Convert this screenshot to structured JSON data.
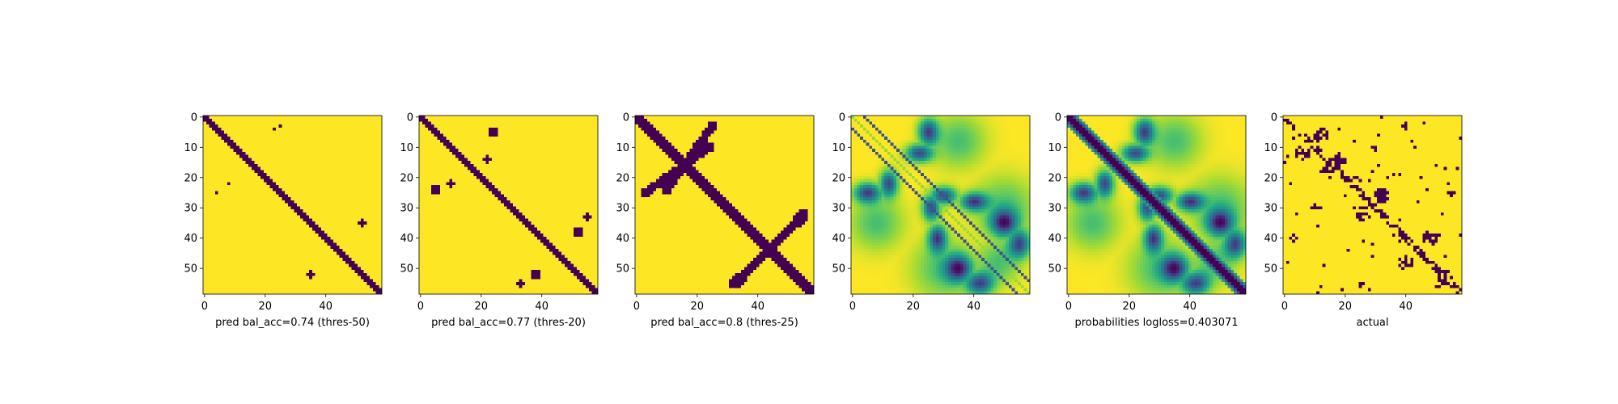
{
  "figure": {
    "background": "#ffffff"
  },
  "colormap": {
    "name": "viridis",
    "low": "#440154",
    "high": "#fde725"
  },
  "chart_data": [
    {
      "type": "heatmap",
      "xlabel": "pred bal_acc=0.74 (thres-50)",
      "size": 59,
      "xticks": [
        0,
        20,
        40
      ],
      "yticks": [
        0,
        10,
        20,
        30,
        40,
        50
      ],
      "pattern": "binary-diagonal",
      "diagonal_half_width": 1.2,
      "blobs": [
        {
          "cx": 23,
          "cy": 4,
          "r": 0.6
        },
        {
          "cx": 25,
          "cy": 3,
          "r": 0.6
        },
        {
          "cx": 4,
          "cy": 25,
          "r": 0.6
        },
        {
          "cx": 8,
          "cy": 22,
          "r": 0.6
        },
        {
          "cx": 52,
          "cy": 35,
          "r": 1.2
        },
        {
          "cx": 35,
          "cy": 52,
          "r": 1.2
        }
      ]
    },
    {
      "type": "heatmap",
      "xlabel": "pred bal_acc=0.77 (thres-20)",
      "size": 59,
      "xticks": [
        0,
        20,
        40
      ],
      "yticks": [
        0,
        10,
        20,
        30,
        40,
        50
      ],
      "pattern": "binary-diagonal",
      "diagonal_half_width": 1.6,
      "blobs": [
        {
          "cx": 24,
          "cy": 5,
          "r": 1.6
        },
        {
          "cx": 22,
          "cy": 14,
          "r": 1.2
        },
        {
          "cx": 20,
          "cy": 20,
          "r": 1.2
        },
        {
          "cx": 5,
          "cy": 24,
          "r": 1.6
        },
        {
          "cx": 10,
          "cy": 22,
          "r": 1.2
        },
        {
          "cx": 52,
          "cy": 38,
          "r": 1.6
        },
        {
          "cx": 55,
          "cy": 33,
          "r": 1.0
        },
        {
          "cx": 38,
          "cy": 52,
          "r": 1.6
        },
        {
          "cx": 33,
          "cy": 55,
          "r": 1.0
        }
      ]
    },
    {
      "type": "heatmap",
      "xlabel": "pred bal_acc=0.8 (thres-25)",
      "size": 59,
      "xticks": [
        0,
        20,
        40
      ],
      "yticks": [
        0,
        10,
        20,
        30,
        40,
        50
      ],
      "pattern": "binary-diagonal",
      "diagonal_half_width": 2.2,
      "cross_bands": [
        {
          "x0": 25,
          "y0": 3,
          "x1": 10,
          "y1": 24,
          "width": 2.0
        },
        {
          "x0": 55,
          "y0": 32,
          "x1": 33,
          "y1": 55,
          "width": 2.0
        }
      ]
    },
    {
      "type": "heatmap",
      "xlabel": "probabilities logloss=0.403071",
      "size": 59,
      "xticks": [
        0,
        20,
        40
      ],
      "yticks": [
        0,
        10,
        20,
        30,
        40,
        50
      ],
      "pattern": "continuous-offdiagonal",
      "offdiagonal_offset": 4
    },
    {
      "type": "heatmap",
      "xlabel": "probabilities logloss=0.403071",
      "size": 59,
      "xticks": [
        0,
        20,
        40
      ],
      "yticks": [
        0,
        10,
        20,
        30,
        40,
        50
      ],
      "pattern": "continuous-diagonal"
    },
    {
      "type": "heatmap",
      "xlabel": "actual",
      "size": 59,
      "xticks": [
        0,
        20,
        40
      ],
      "yticks": [
        0,
        10,
        20,
        30,
        40,
        50
      ],
      "pattern": "binary-actual"
    }
  ]
}
